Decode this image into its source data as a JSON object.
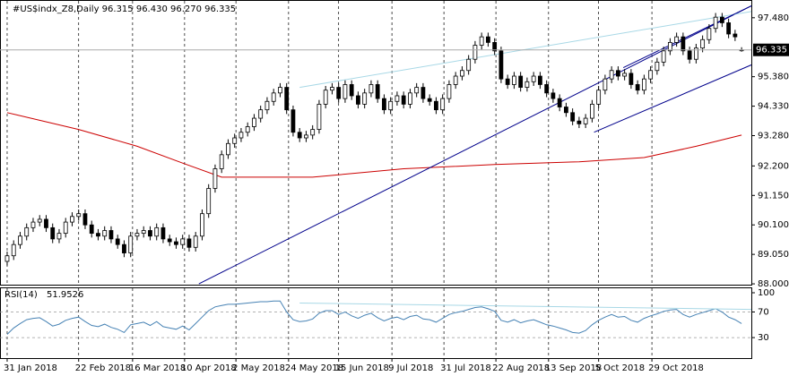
{
  "chart_data": [
    {
      "type": "candlestick",
      "title": "#US$indx_Z8,Daily  96.315 96.430 96.270 96.335",
      "xlim": [
        -1.1,
        114.5
      ],
      "ylim": [
        87.97,
        98.08
      ],
      "yticks": [
        {
          "value": 97.48,
          "label": "97.480"
        },
        {
          "value": 95.38,
          "label": "95.380"
        },
        {
          "value": 94.33,
          "label": "94.330"
        },
        {
          "value": 93.28,
          "label": "93.280"
        },
        {
          "value": 92.2,
          "label": "92.200"
        },
        {
          "value": 91.15,
          "label": "91.150"
        },
        {
          "value": 90.1,
          "label": "90.100"
        },
        {
          "value": 89.05,
          "label": "89.050"
        },
        {
          "value": 88,
          "label": "88.000"
        }
      ],
      "current": {
        "value": 96.335,
        "label": "96.335"
      },
      "up_color": "#ffffff",
      "down_color": "#000000",
      "ohlc": [
        [
          88.8,
          89.15,
          88.65,
          89.0
        ],
        [
          89.0,
          89.55,
          88.85,
          89.4
        ],
        [
          89.4,
          89.85,
          89.25,
          89.7
        ],
        [
          89.7,
          90.15,
          89.55,
          90.0
        ],
        [
          90.0,
          90.35,
          89.85,
          90.2
        ],
        [
          90.2,
          90.45,
          90.05,
          90.3
        ],
        [
          90.3,
          90.45,
          89.85,
          90.0
        ],
        [
          90.0,
          90.15,
          89.45,
          89.6
        ],
        [
          89.6,
          89.95,
          89.45,
          89.8
        ],
        [
          89.8,
          90.35,
          89.65,
          90.2
        ],
        [
          90.2,
          90.55,
          90.05,
          90.4
        ],
        [
          90.4,
          90.65,
          90.25,
          90.5
        ],
        [
          90.5,
          90.65,
          89.95,
          90.1
        ],
        [
          90.1,
          90.25,
          89.65,
          89.8
        ],
        [
          89.8,
          89.95,
          89.55,
          89.7
        ],
        [
          89.7,
          90.05,
          89.55,
          89.9
        ],
        [
          89.9,
          90.05,
          89.45,
          89.6
        ],
        [
          89.6,
          89.75,
          89.25,
          89.4
        ],
        [
          89.4,
          89.55,
          88.95,
          89.1
        ],
        [
          89.1,
          89.85,
          88.95,
          89.7
        ],
        [
          89.7,
          89.95,
          89.55,
          89.8
        ],
        [
          89.8,
          90.05,
          89.65,
          89.9
        ],
        [
          89.9,
          90.05,
          89.55,
          89.7
        ],
        [
          89.7,
          90.15,
          89.55,
          90.0
        ],
        [
          90.0,
          90.15,
          89.45,
          89.6
        ],
        [
          89.6,
          89.75,
          89.35,
          89.5
        ],
        [
          89.5,
          89.65,
          89.25,
          89.4
        ],
        [
          89.4,
          89.75,
          89.25,
          89.6
        ],
        [
          89.6,
          89.75,
          89.15,
          89.3
        ],
        [
          89.3,
          89.85,
          89.15,
          89.7
        ],
        [
          89.7,
          90.65,
          89.55,
          90.5
        ],
        [
          90.5,
          91.55,
          90.35,
          91.4
        ],
        [
          91.4,
          92.25,
          91.25,
          92.1
        ],
        [
          92.1,
          92.75,
          91.95,
          92.6
        ],
        [
          92.6,
          93.15,
          92.45,
          93.0
        ],
        [
          93.0,
          93.35,
          92.85,
          93.2
        ],
        [
          93.2,
          93.55,
          93.05,
          93.4
        ],
        [
          93.4,
          93.75,
          93.25,
          93.6
        ],
        [
          93.6,
          94.05,
          93.45,
          93.9
        ],
        [
          93.9,
          94.35,
          93.75,
          94.2
        ],
        [
          94.2,
          94.65,
          94.05,
          94.5
        ],
        [
          94.5,
          94.95,
          94.35,
          94.8
        ],
        [
          94.8,
          95.15,
          94.65,
          95.0
        ],
        [
          95.0,
          95.15,
          94.05,
          94.2
        ],
        [
          94.2,
          94.35,
          93.25,
          93.4
        ],
        [
          93.4,
          93.55,
          93.05,
          93.2
        ],
        [
          93.2,
          93.45,
          93.05,
          93.3
        ],
        [
          93.3,
          93.65,
          93.15,
          93.5
        ],
        [
          93.5,
          94.55,
          93.35,
          94.4
        ],
        [
          94.4,
          95.05,
          94.25,
          94.9
        ],
        [
          94.9,
          95.15,
          94.75,
          95.0
        ],
        [
          95.0,
          95.15,
          94.45,
          94.6
        ],
        [
          94.6,
          95.25,
          94.45,
          95.1
        ],
        [
          95.1,
          95.25,
          94.55,
          94.7
        ],
        [
          94.7,
          94.85,
          94.25,
          94.4
        ],
        [
          94.4,
          94.95,
          94.25,
          94.8
        ],
        [
          94.8,
          95.25,
          94.65,
          95.1
        ],
        [
          95.1,
          95.25,
          94.45,
          94.6
        ],
        [
          94.6,
          94.75,
          94.05,
          94.2
        ],
        [
          94.2,
          94.65,
          94.05,
          94.5
        ],
        [
          94.5,
          94.85,
          94.35,
          94.7
        ],
        [
          94.7,
          94.85,
          94.25,
          94.4
        ],
        [
          94.4,
          94.95,
          94.25,
          94.8
        ],
        [
          94.8,
          95.15,
          94.65,
          95.0
        ],
        [
          95.0,
          95.15,
          94.45,
          94.6
        ],
        [
          94.6,
          94.75,
          94.35,
          94.5
        ],
        [
          94.5,
          94.65,
          94.05,
          94.2
        ],
        [
          94.2,
          94.75,
          94.05,
          94.6
        ],
        [
          94.6,
          95.25,
          94.45,
          95.1
        ],
        [
          95.1,
          95.55,
          94.95,
          95.4
        ],
        [
          95.4,
          95.75,
          95.25,
          95.6
        ],
        [
          95.6,
          96.15,
          95.45,
          96.0
        ],
        [
          96.0,
          96.65,
          95.85,
          96.5
        ],
        [
          96.5,
          96.95,
          96.35,
          96.8
        ],
        [
          96.8,
          96.95,
          96.45,
          96.6
        ],
        [
          96.6,
          96.75,
          96.15,
          96.3
        ],
        [
          96.3,
          96.45,
          95.15,
          95.3
        ],
        [
          95.3,
          95.45,
          94.95,
          95.1
        ],
        [
          95.1,
          95.55,
          94.95,
          95.4
        ],
        [
          95.4,
          95.55,
          94.85,
          95.0
        ],
        [
          95.0,
          95.35,
          94.85,
          95.2
        ],
        [
          95.2,
          95.55,
          95.05,
          95.4
        ],
        [
          95.4,
          95.55,
          94.95,
          95.1
        ],
        [
          95.1,
          95.25,
          94.65,
          94.8
        ],
        [
          94.8,
          94.95,
          94.45,
          94.6
        ],
        [
          94.6,
          94.75,
          94.15,
          94.3
        ],
        [
          94.3,
          94.45,
          93.95,
          94.1
        ],
        [
          94.1,
          94.25,
          93.65,
          93.8
        ],
        [
          93.8,
          93.95,
          93.55,
          93.7
        ],
        [
          93.7,
          94.05,
          93.55,
          93.9
        ],
        [
          93.9,
          94.55,
          93.75,
          94.4
        ],
        [
          94.4,
          95.05,
          94.25,
          94.9
        ],
        [
          94.9,
          95.45,
          94.75,
          95.3
        ],
        [
          95.3,
          95.75,
          95.15,
          95.6
        ],
        [
          95.6,
          95.75,
          95.25,
          95.4
        ],
        [
          95.4,
          95.65,
          95.25,
          95.5
        ],
        [
          95.5,
          95.65,
          94.95,
          95.1
        ],
        [
          95.1,
          95.25,
          94.75,
          94.9
        ],
        [
          94.9,
          95.45,
          94.75,
          95.3
        ],
        [
          95.3,
          95.75,
          95.15,
          95.6
        ],
        [
          95.6,
          96.05,
          95.45,
          95.9
        ],
        [
          95.9,
          96.45,
          95.75,
          96.3
        ],
        [
          96.3,
          96.75,
          96.15,
          96.6
        ],
        [
          96.6,
          96.95,
          96.45,
          96.8
        ],
        [
          96.8,
          96.95,
          96.15,
          96.3
        ],
        [
          96.3,
          96.45,
          95.85,
          96.0
        ],
        [
          96.0,
          96.55,
          95.85,
          96.4
        ],
        [
          96.4,
          96.85,
          96.25,
          96.7
        ],
        [
          96.7,
          97.25,
          96.55,
          97.1
        ],
        [
          97.1,
          97.65,
          96.95,
          97.5
        ],
        [
          97.5,
          97.65,
          97.15,
          97.3
        ],
        [
          97.3,
          97.45,
          96.75,
          96.9
        ],
        [
          96.9,
          97.05,
          96.65,
          96.8
        ],
        [
          96.315,
          96.43,
          96.27,
          96.335
        ]
      ],
      "series": [
        {
          "color": "#cc0000",
          "x": [
            0,
            11,
            20,
            27,
            33,
            47,
            61,
            75,
            88,
            98,
            106,
            113
          ],
          "values": [
            94.1,
            93.5,
            92.9,
            92.3,
            91.8,
            91.8,
            92.1,
            92.25,
            92.35,
            92.5,
            92.9,
            93.3
          ]
        },
        {
          "color": "#00008b",
          "x": [
            29.5,
            114.5
          ],
          "values": [
            88.0,
            97.9
          ]
        },
        {
          "color": "#a8d8e6",
          "x": [
            45,
            114.5
          ],
          "values": [
            95.0,
            97.7
          ]
        },
        {
          "color": "#00008b",
          "x": [
            94.8,
            114.5
          ],
          "values": [
            95.7,
            97.9
          ]
        },
        {
          "color": "#00008b",
          "x": [
            90.3,
            114.5
          ],
          "values": [
            93.4,
            95.8
          ]
        }
      ]
    },
    {
      "type": "line",
      "title": "RSI(14)",
      "color": "#4682b4",
      "xlim": [
        -1.1,
        114.5
      ],
      "ylim": [
        -2,
        107
      ],
      "yticks": [
        100,
        70,
        30
      ],
      "xticks": [
        {
          "value": 0,
          "label": "31 Jan 2018"
        },
        {
          "value": 11,
          "label": "22 Feb 2018"
        },
        {
          "value": 19.3,
          "label": "16 Mar 2018"
        },
        {
          "value": 27.3,
          "label": "10 Apr 2018"
        },
        {
          "value": 35.2,
          "label": "2 May 2018"
        },
        {
          "value": 43.3,
          "label": "24 May 2018"
        },
        {
          "value": 51,
          "label": "15 Jun 2018"
        },
        {
          "value": 59.2,
          "label": "9 Jul 2018"
        },
        {
          "value": 67.2,
          "label": "31 Jul 2018"
        },
        {
          "value": 75.2,
          "label": "22 Aug 2018"
        },
        {
          "value": 83.3,
          "label": "13 Sep 2018"
        },
        {
          "value": 91,
          "label": "5 Oct 2018"
        },
        {
          "value": 99.2,
          "label": "29 Oct 2018"
        }
      ],
      "values": [
        35,
        45,
        52,
        58,
        60,
        61,
        55,
        48,
        51,
        57,
        60,
        62,
        55,
        49,
        47,
        51,
        46,
        43,
        38,
        50,
        52,
        54,
        49,
        55,
        47,
        45,
        43,
        48,
        42,
        52,
        62,
        72,
        78,
        80,
        82,
        82,
        83,
        84,
        85,
        86,
        86,
        87,
        87,
        70,
        58,
        55,
        56,
        59,
        68,
        72,
        72,
        66,
        70,
        64,
        60,
        65,
        68,
        61,
        56,
        60,
        62,
        58,
        63,
        65,
        59,
        58,
        54,
        60,
        66,
        69,
        71,
        74,
        77,
        78,
        75,
        71,
        57,
        54,
        58,
        53,
        56,
        58,
        54,
        50,
        48,
        45,
        42,
        38,
        37,
        41,
        50,
        57,
        62,
        66,
        62,
        63,
        57,
        54,
        60,
        64,
        67,
        71,
        73,
        74,
        66,
        62,
        66,
        69,
        72,
        75,
        70,
        62,
        58,
        51.9526
      ],
      "trendline": {
        "color": "#a8d8e6",
        "x": [
          45,
          114.5
        ],
        "values": [
          84,
          74
        ]
      }
    }
  ]
}
